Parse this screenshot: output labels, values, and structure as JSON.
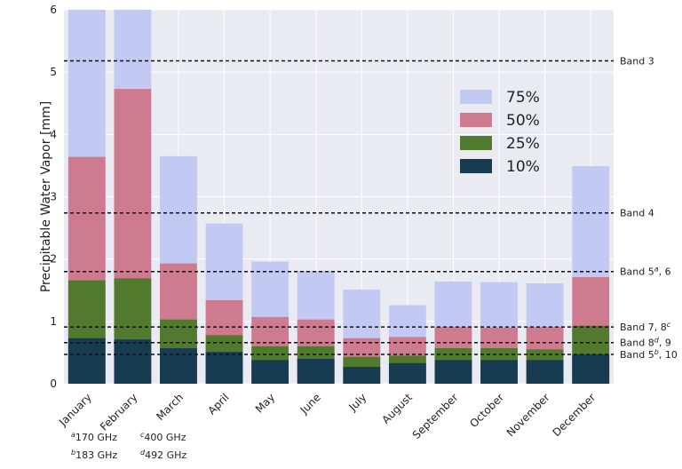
{
  "chart_data": {
    "type": "bar",
    "stacking": "overlay",
    "ylabel": "Precipitable Water Vapor [mm]",
    "ylim": [
      0,
      6
    ],
    "yticks": [
      "0",
      "1",
      "2",
      "3",
      "4",
      "5",
      "6"
    ],
    "grid": true,
    "legend_position": "right",
    "categories": [
      "January",
      "February",
      "March",
      "April",
      "May",
      "June",
      "July",
      "August",
      "September",
      "October",
      "November",
      "December"
    ],
    "series": [
      {
        "name": "75%",
        "color": "#c2c9f2",
        "values": [
          6.4,
          6.4,
          3.65,
          2.57,
          1.96,
          1.81,
          1.51,
          1.26,
          1.64,
          1.63,
          1.61,
          3.49
        ]
      },
      {
        "name": "50%",
        "color": "#cf7b8f",
        "values": [
          3.64,
          4.73,
          1.93,
          1.34,
          1.07,
          1.03,
          0.73,
          0.75,
          0.91,
          0.9,
          0.91,
          1.71
        ]
      },
      {
        "name": "25%",
        "color": "#527a2f",
        "values": [
          1.66,
          1.69,
          1.03,
          0.78,
          0.6,
          0.6,
          0.43,
          0.45,
          0.57,
          0.57,
          0.55,
          0.93
        ]
      },
      {
        "name": "10%",
        "color": "#173c52",
        "values": [
          0.73,
          0.71,
          0.57,
          0.51,
          0.38,
          0.4,
          0.27,
          0.33,
          0.38,
          0.38,
          0.38,
          0.47
        ]
      }
    ],
    "reference_lines": [
      {
        "label": "Band 3",
        "sup": "",
        "suffix": "",
        "value": 5.18
      },
      {
        "label": "Band 4",
        "sup": "",
        "suffix": "",
        "value": 2.74
      },
      {
        "label": "Band 5",
        "sup": "a",
        "suffix": ", 6",
        "value": 1.8
      },
      {
        "label": "Band 7, 8",
        "sup": "c",
        "suffix": "",
        "value": 0.91
      },
      {
        "label": "Band 8",
        "sup": "d",
        "suffix": ", 9",
        "value": 0.66
      },
      {
        "label": "Band 5",
        "sup": "b",
        "suffix": ", 10",
        "value": 0.47
      }
    ],
    "footnotes": [
      {
        "sup": "a",
        "text": "170 GHz"
      },
      {
        "sup": "b",
        "text": "183 GHz"
      },
      {
        "sup": "c",
        "text": "400 GHz"
      },
      {
        "sup": "d",
        "text": "492 GHz"
      }
    ]
  }
}
